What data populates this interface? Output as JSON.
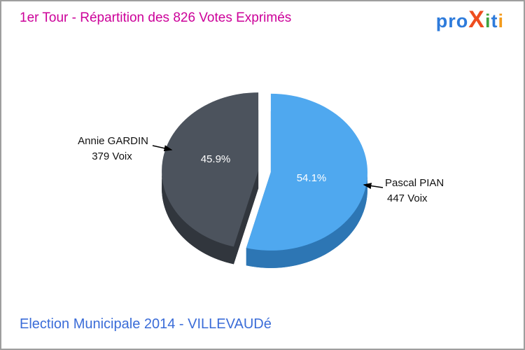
{
  "header": {
    "title": "1er Tour - Répartition des 826 Votes Exprimés",
    "logo": {
      "text": "proXiti",
      "letters": [
        {
          "ch": "p",
          "color": "#2E7BDB"
        },
        {
          "ch": "r",
          "color": "#2E7BDB"
        },
        {
          "ch": "o",
          "color": "#2E7BDB"
        },
        {
          "ch": "X",
          "color": "#EE4D1E",
          "big": true
        },
        {
          "ch": "i",
          "color": "#3FA33F"
        },
        {
          "ch": "t",
          "color": "#2E7BDB"
        },
        {
          "ch": "i",
          "color": "#F39B1C"
        }
      ]
    }
  },
  "footer": {
    "text": "Election Municipale 2014 - VILLEVAUDé"
  },
  "colors": {
    "title": "#CC0099",
    "footer": "#3A6CD8"
  },
  "chart_data": {
    "type": "pie",
    "title": "1er Tour - Répartition des 826 Votes Exprimés",
    "total_votes": 826,
    "start_angle_deg": -90,
    "legend_position": "callout-labels",
    "effect": "3d-exploded",
    "slices": [
      {
        "name": "Pascal PIAN",
        "votes": 447,
        "votes_label": "447 Voix",
        "pct": 54.1,
        "pct_label": "54.1%",
        "color": "#4FA8EF",
        "side_color": "#2D76B4"
      },
      {
        "name": "Annie GARDIN",
        "votes": 379,
        "votes_label": "379 Voix",
        "pct": 45.9,
        "pct_label": "45.9%",
        "color": "#4C535D",
        "side_color": "#31363D"
      }
    ]
  }
}
